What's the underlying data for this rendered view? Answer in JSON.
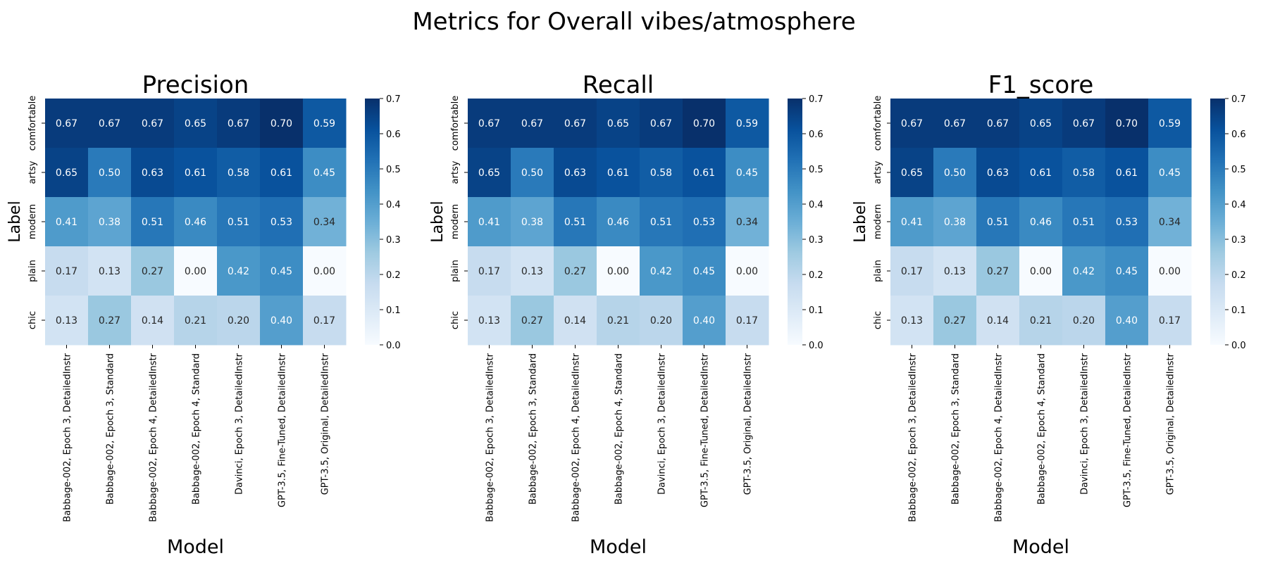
{
  "figure_title": "Metrics for Overall vibes/atmosphere",
  "chart_data": [
    {
      "type": "heatmap",
      "title": "Precision",
      "xlabel": "Model",
      "ylabel": "Label",
      "x": [
        "Babbage-002, Epoch 3, DetailedInstr",
        "Babbage-002, Epoch 3, Standard",
        "Babbage-002, Epoch 4, DetailedInstr",
        "Babbage-002, Epoch 4, Standard",
        "Davinci, Epoch 3, DetailedInstr",
        "GPT-3.5, Fine-Tuned, DetailedInstr",
        "GPT-3.5, Original, DetailedInstr"
      ],
      "y": [
        "comfortable",
        "artsy",
        "modern",
        "plain",
        "chic"
      ],
      "values": [
        [
          0.67,
          0.67,
          0.67,
          0.65,
          0.67,
          0.7,
          0.59
        ],
        [
          0.65,
          0.5,
          0.63,
          0.61,
          0.58,
          0.61,
          0.45
        ],
        [
          0.41,
          0.38,
          0.51,
          0.46,
          0.51,
          0.53,
          0.34
        ],
        [
          0.17,
          0.13,
          0.27,
          0.0,
          0.42,
          0.45,
          0.0
        ],
        [
          0.13,
          0.27,
          0.14,
          0.21,
          0.2,
          0.4,
          0.17
        ]
      ],
      "colorbar": {
        "min": 0.0,
        "max": 0.7,
        "ticks": [
          "0.0",
          "0.1",
          "0.2",
          "0.3",
          "0.4",
          "0.5",
          "0.6",
          "0.7"
        ],
        "colormap": "Blues"
      }
    },
    {
      "type": "heatmap",
      "title": "Recall",
      "xlabel": "Model",
      "ylabel": "Label",
      "x": [
        "Babbage-002, Epoch 3, DetailedInstr",
        "Babbage-002, Epoch 3, Standard",
        "Babbage-002, Epoch 4, DetailedInstr",
        "Babbage-002, Epoch 4, Standard",
        "Davinci, Epoch 3, DetailedInstr",
        "GPT-3.5, Fine-Tuned, DetailedInstr",
        "GPT-3.5, Original, DetailedInstr"
      ],
      "y": [
        "comfortable",
        "artsy",
        "modern",
        "plain",
        "chic"
      ],
      "values": [
        [
          0.67,
          0.67,
          0.67,
          0.65,
          0.67,
          0.7,
          0.59
        ],
        [
          0.65,
          0.5,
          0.63,
          0.61,
          0.58,
          0.61,
          0.45
        ],
        [
          0.41,
          0.38,
          0.51,
          0.46,
          0.51,
          0.53,
          0.34
        ],
        [
          0.17,
          0.13,
          0.27,
          0.0,
          0.42,
          0.45,
          0.0
        ],
        [
          0.13,
          0.27,
          0.14,
          0.21,
          0.2,
          0.4,
          0.17
        ]
      ],
      "colorbar": {
        "min": 0.0,
        "max": 0.7,
        "ticks": [
          "0.0",
          "0.1",
          "0.2",
          "0.3",
          "0.4",
          "0.5",
          "0.6",
          "0.7"
        ],
        "colormap": "Blues"
      }
    },
    {
      "type": "heatmap",
      "title": "F1_score",
      "xlabel": "Model",
      "ylabel": "Label",
      "x": [
        "Babbage-002, Epoch 3, DetailedInstr",
        "Babbage-002, Epoch 3, Standard",
        "Babbage-002, Epoch 4, DetailedInstr",
        "Babbage-002, Epoch 4, Standard",
        "Davinci, Epoch 3, DetailedInstr",
        "GPT-3.5, Fine-Tuned, DetailedInstr",
        "GPT-3.5, Original, DetailedInstr"
      ],
      "y": [
        "comfortable",
        "artsy",
        "modern",
        "plain",
        "chic"
      ],
      "values": [
        [
          0.67,
          0.67,
          0.67,
          0.65,
          0.67,
          0.7,
          0.59
        ],
        [
          0.65,
          0.5,
          0.63,
          0.61,
          0.58,
          0.61,
          0.45
        ],
        [
          0.41,
          0.38,
          0.51,
          0.46,
          0.51,
          0.53,
          0.34
        ],
        [
          0.17,
          0.13,
          0.27,
          0.0,
          0.42,
          0.45,
          0.0
        ],
        [
          0.13,
          0.27,
          0.14,
          0.21,
          0.2,
          0.4,
          0.17
        ]
      ],
      "colorbar": {
        "min": 0.0,
        "max": 0.7,
        "ticks": [
          "0.0",
          "0.1",
          "0.2",
          "0.3",
          "0.4",
          "0.5",
          "0.6",
          "0.7"
        ],
        "colormap": "Blues"
      }
    }
  ]
}
